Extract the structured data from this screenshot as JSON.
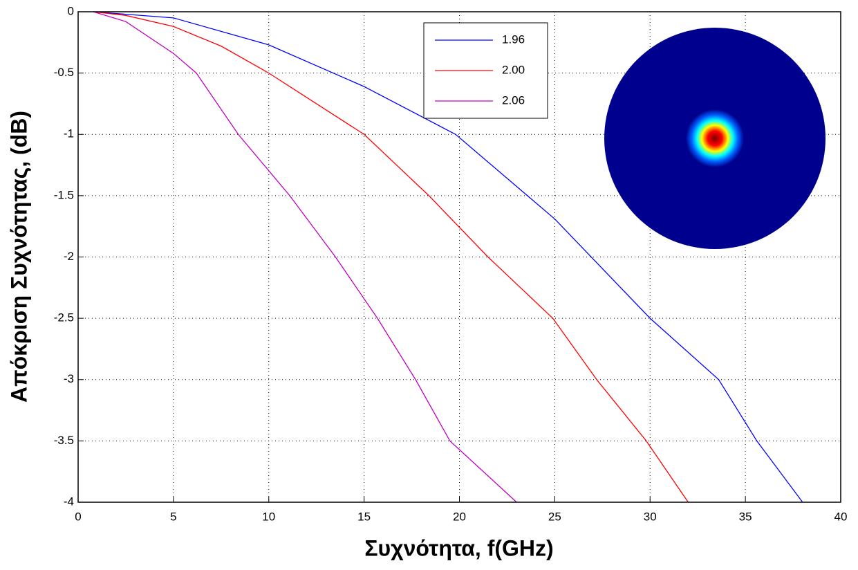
{
  "chart_data": {
    "type": "line",
    "x_label": "Συχνότητα, f(GHz)",
    "y_label": "Απόκριση Συχνότητας, (dB)",
    "xlim": [
      0,
      40
    ],
    "ylim": [
      -4,
      0
    ],
    "xticks": [
      0,
      5,
      10,
      15,
      20,
      25,
      30,
      35,
      40
    ],
    "yticks": [
      0,
      -0.5,
      -1,
      -1.5,
      -2,
      -2.5,
      -3,
      -3.5,
      -4
    ],
    "grid": true,
    "legend": "top-right",
    "series": [
      {
        "name": "1.96",
        "color": "#0000ff",
        "x": [
          0.8,
          5,
          10,
          15,
          19.8,
          25,
          30,
          33.6,
          35.6,
          38
        ],
        "values": [
          0,
          -0.05,
          -0.27,
          -0.61,
          -1,
          -1.69,
          -2.5,
          -3,
          -3.5,
          -4
        ]
      },
      {
        "name": "2.00",
        "color": "#ff0000",
        "x": [
          0.8,
          2.5,
          5,
          7.5,
          10,
          15,
          18.4,
          21.5,
          24.9,
          27.2,
          29.8,
          32
        ],
        "values": [
          0,
          -0.03,
          -0.12,
          -0.28,
          -0.5,
          -1,
          -1.5,
          -2,
          -2.5,
          -3,
          -3.5,
          -4
        ]
      },
      {
        "name": "2.06",
        "color": "#bf00bf",
        "x": [
          0.8,
          2.5,
          5,
          6.2,
          8.4,
          11.1,
          13.5,
          15.7,
          17.7,
          19.5,
          23
        ],
        "values": [
          0,
          -0.08,
          -0.34,
          -0.5,
          -1,
          -1.5,
          -2,
          -2.5,
          -3,
          -3.5,
          -4
        ]
      }
    ]
  }
}
